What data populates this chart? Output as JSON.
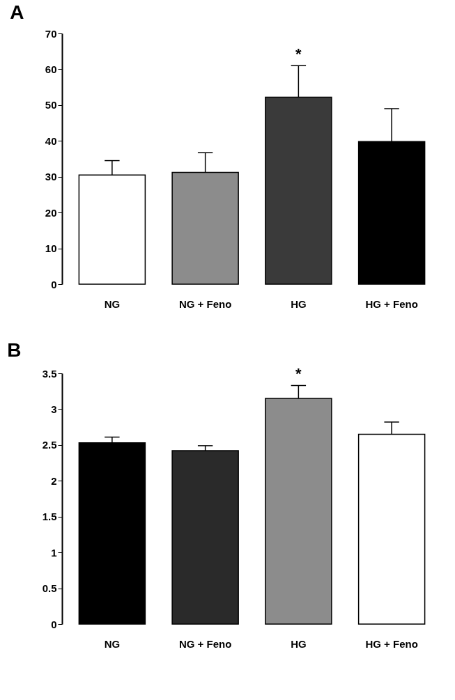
{
  "chart_data": [
    {
      "type": "bar",
      "title": "A",
      "categories": [
        "NG",
        "NG + Feno",
        "HG",
        "HG + Feno"
      ],
      "values": [
        30.5,
        31.2,
        52.2,
        39.8
      ],
      "colors": [
        "#ffffff",
        "#8c8c8c",
        "#3a3a3a",
        "#000000"
      ],
      "errors": [
        [
          30.5,
          34.5
        ],
        [
          31.2,
          36.7
        ],
        [
          52.2,
          61
        ],
        [
          39.8,
          49
        ]
      ],
      "ylim": [
        0,
        70
      ],
      "yticks": [
        0,
        10,
        20,
        30,
        40,
        50,
        60,
        70
      ],
      "grid": false,
      "annotations": [
        "*"
      ]
    },
    {
      "type": "bar",
      "title": "B",
      "categories": [
        "NG",
        "NG + Feno",
        "HG",
        "HG + Feno"
      ],
      "values": [
        2.53,
        2.42,
        3.15,
        2.65
      ],
      "colors": [
        "#000000",
        "#2a2a2a",
        "#8c8c8c",
        "#ffffff"
      ],
      "errors": [
        [
          2.53,
          2.61
        ],
        [
          2.42,
          2.49
        ],
        [
          3.15,
          3.33
        ],
        [
          2.65,
          2.82
        ]
      ],
      "ylim": [
        0,
        3.5
      ],
      "yticks": [
        0,
        0.5,
        1,
        1.5,
        2,
        2.5,
        3,
        3.5
      ],
      "grid": false,
      "annotations": [
        "*"
      ]
    }
  ]
}
